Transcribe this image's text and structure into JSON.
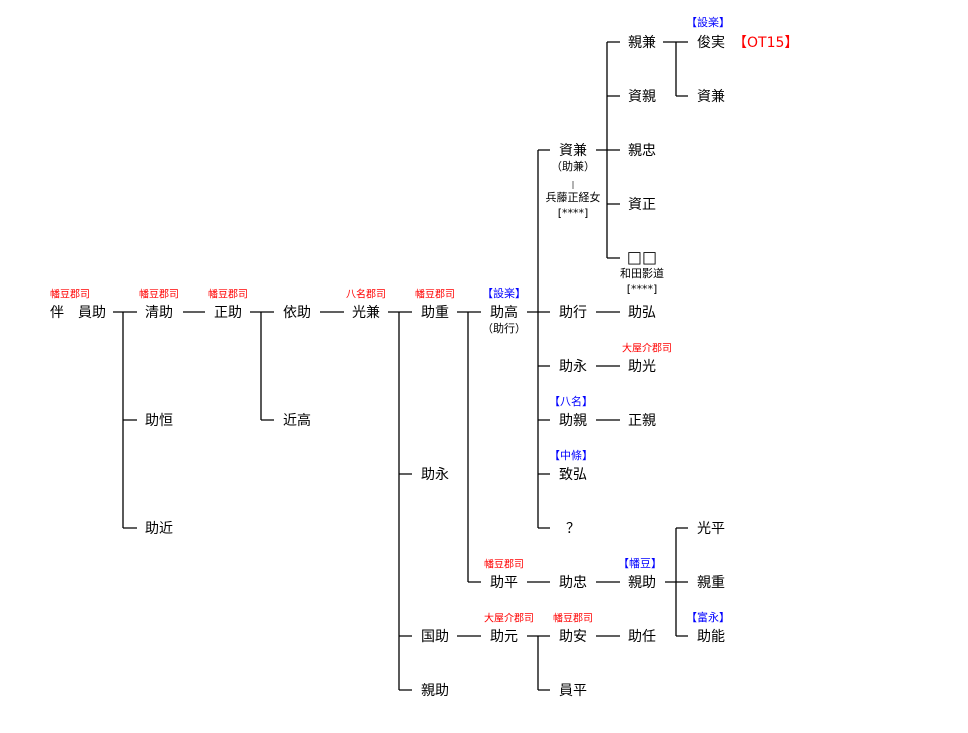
{
  "names": {
    "tomo_kazusuke": "伴　員助",
    "kiyosuke": "清助",
    "masasuke": "正助",
    "yorisuke": "依助",
    "mitsukane": "光兼",
    "sukeshige": "助重",
    "sukataka": "助高",
    "sukataka_alt": "（助行）",
    "sukekane": "資兼",
    "sukekane_alt": "（助兼）",
    "sukekane_wife": "兵藤正経女",
    "sukekane_wife_note": "[****]",
    "chikakane": "親兼",
    "toshizane": "俊実",
    "toshizane_ref": "【OT15】",
    "sukechika": "資親",
    "sukekane2": "資兼",
    "chikatada": "親忠",
    "sukemasa": "資正",
    "unknown_squares": "□□",
    "wada_kagemichi": "和田影道",
    "wada_note": "[****]",
    "sukeyuki": "助行",
    "sukehiro": "助弘",
    "sukenaga": "助永",
    "sukemitsu": "助光",
    "sukechika2": "助親",
    "masachika": "正親",
    "munehiro": "致弘",
    "question": "？",
    "sukehira": "助平",
    "suketada": "助忠",
    "chikasuke": "親助",
    "mitsuhira": "光平",
    "chikashige": "親重",
    "sukeyoshi": "助能",
    "sukenaga2": "助永",
    "kunisuke": "国助",
    "sukemoto": "助元",
    "sukeyasu": "助安",
    "suketou": "助任",
    "kazuhira": "員平",
    "chikasuke2": "親助",
    "sukeyori": "助恒",
    "sukechika3": "助近",
    "chikataka": "近高"
  },
  "labels": {
    "hatazu_gunji": "幡豆郡司",
    "yana_gunji": "八名郡司",
    "ooyanosuke_gunji": "大屋介郡司",
    "shitara": "【設楽】",
    "yana": "【八名】",
    "chujo": "【中條】",
    "hatazu": "【幡豆】",
    "tominaga": "【富永】"
  },
  "colors": {
    "office_label": "#ff0000",
    "clan_label": "#0000ff",
    "lines": "#000000"
  }
}
